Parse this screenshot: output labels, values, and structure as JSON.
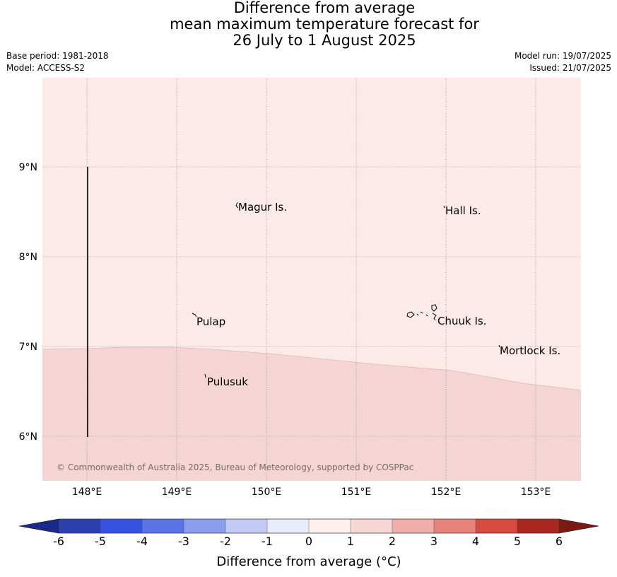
{
  "title": {
    "line1": "Difference from average",
    "line2": "mean maximum temperature forecast for",
    "line3": "26 July to 1 August 2025"
  },
  "meta_left": {
    "base_period": "Base period: 1981-2018",
    "model": "Model: ACCESS-S2"
  },
  "meta_right": {
    "model_run": "Model run: 19/07/2025",
    "issued": "Issued: 21/07/2025"
  },
  "map": {
    "lon_range": [
      147.5,
      153.5
    ],
    "lat_range": [
      5.5,
      9.98
    ],
    "lon_ticks": [
      "148°E",
      "149°E",
      "150°E",
      "151°E",
      "152°E",
      "153°E"
    ],
    "lat_ticks": [
      "6°N",
      "7°N",
      "8°N",
      "9°N"
    ],
    "place_labels": [
      {
        "name": "Magur Is."
      },
      {
        "name": "Hall Is."
      },
      {
        "name": "Pulap"
      },
      {
        "name": "Chuuk Is."
      },
      {
        "name": "Mortlock Is."
      },
      {
        "name": "Pulusuk"
      }
    ],
    "regions": [
      {
        "anomaly_range": "0 to 1",
        "color": "#fbeae8"
      },
      {
        "anomaly_range": "1 to 2",
        "color": "#f5d5d3"
      }
    ],
    "copyright": "© Commonwealth of Australia 2025, Bureau of Meteorology, supported by COSPPac"
  },
  "colorbar": {
    "title": "Difference from average (°C)",
    "tick_labels": [
      "-6",
      "-5",
      "-4",
      "-3",
      "-2",
      "-1",
      "0",
      "1",
      "2",
      "3",
      "4",
      "5",
      "6"
    ],
    "under_color": "#1a2a8a",
    "over_color": "#7a1a14",
    "colors": [
      "#2b3fae",
      "#3553e0",
      "#5a74e6",
      "#8a9eee",
      "#c2caf5",
      "#e9ecfb",
      "#fdf0ee",
      "#f6d7d4",
      "#efaeaa",
      "#e8837c",
      "#d94a3e",
      "#a9281f"
    ]
  }
}
